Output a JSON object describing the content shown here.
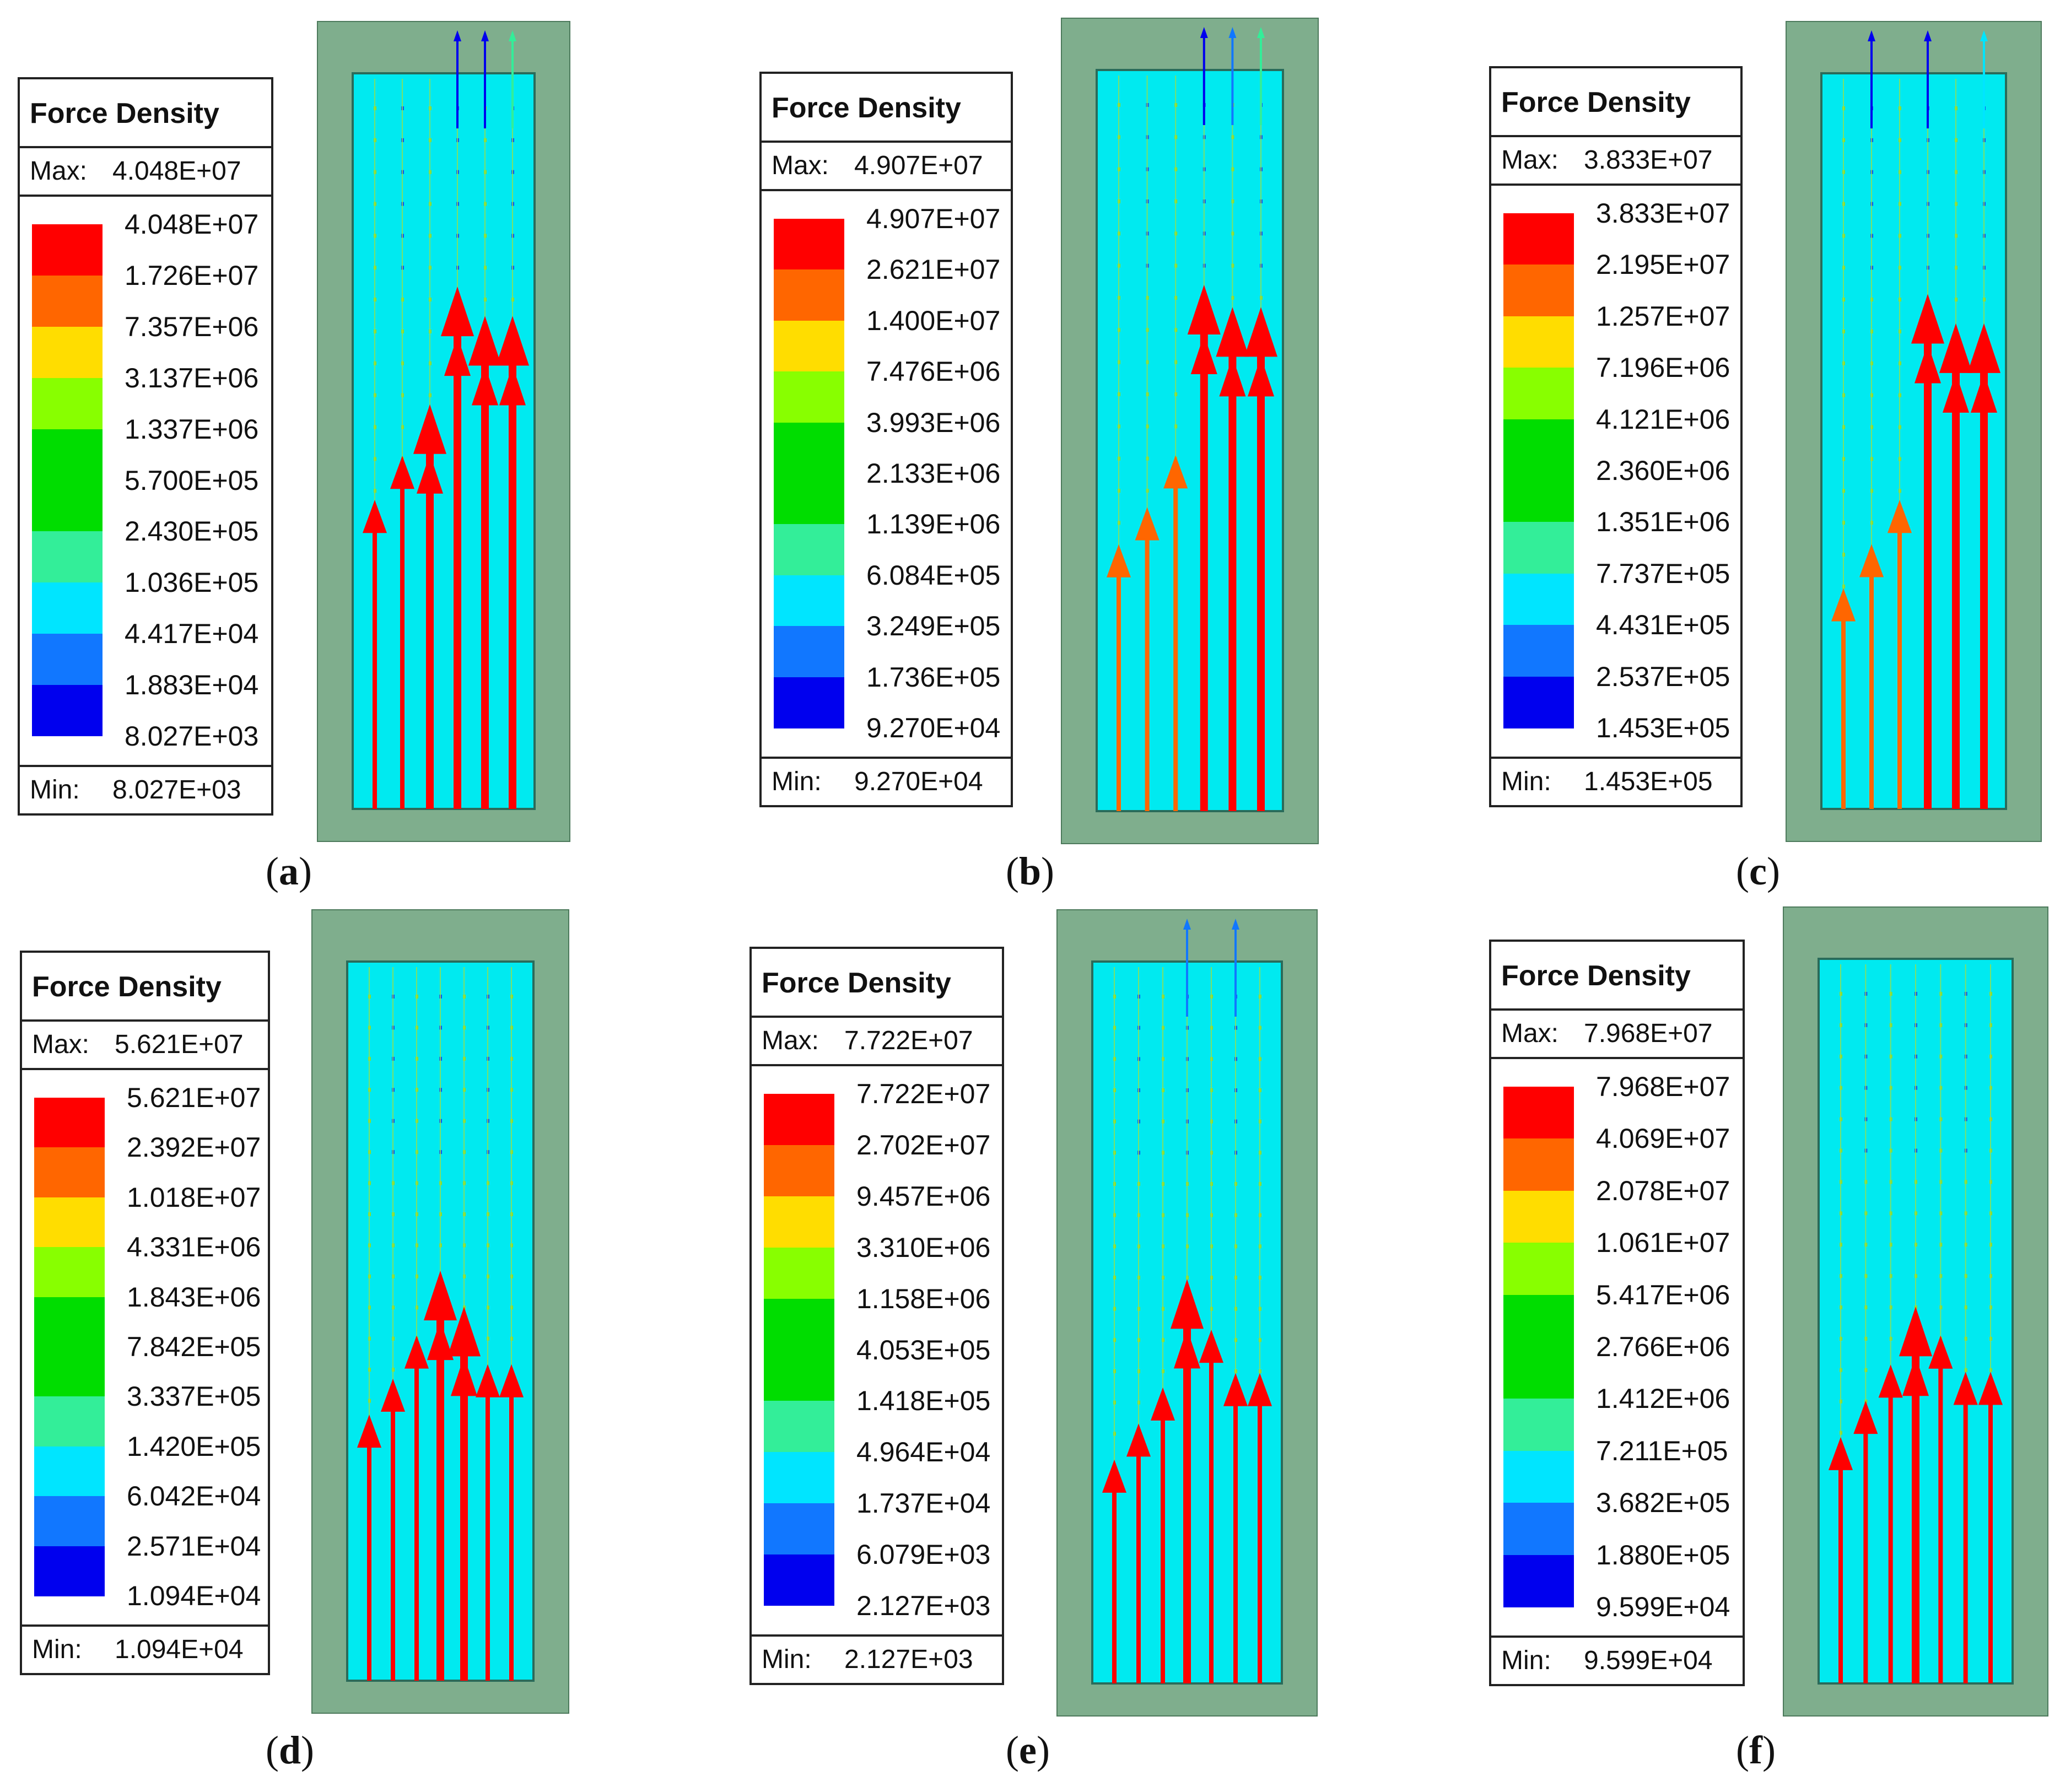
{
  "legend_title": "Force Density",
  "max_label": "Max:",
  "min_label": "Min:",
  "colors": [
    "#ff0000",
    "#ff6600",
    "#ffdd00",
    "#88ff00",
    "#00dd00",
    "#33ee99",
    "#00e5ff",
    "#1177ff",
    "#0000ee"
  ],
  "panels": [
    {
      "caption": "a",
      "max": "4.048E+07",
      "min": "8.027E+03",
      "ticks": [
        "4.048E+07",
        "1.726E+07",
        "7.357E+06",
        "3.137E+06",
        "1.337E+06",
        "5.700E+05",
        "2.430E+05",
        "1.036E+05",
        "4.417E+04",
        "1.883E+04",
        "8.027E+03"
      ]
    },
    {
      "caption": "b",
      "max": "4.907E+07",
      "min": "9.270E+04",
      "ticks": [
        "4.907E+07",
        "2.621E+07",
        "1.400E+07",
        "7.476E+06",
        "3.993E+06",
        "2.133E+06",
        "1.139E+06",
        "6.084E+05",
        "3.249E+05",
        "1.736E+05",
        "9.270E+04"
      ]
    },
    {
      "caption": "c",
      "max": "3.833E+07",
      "min": "1.453E+05",
      "ticks": [
        "3.833E+07",
        "2.195E+07",
        "1.257E+07",
        "7.196E+06",
        "4.121E+06",
        "2.360E+06",
        "1.351E+06",
        "7.737E+05",
        "4.431E+05",
        "2.537E+05",
        "1.453E+05"
      ]
    },
    {
      "caption": "d",
      "max": "5.621E+07",
      "min": "1.094E+04",
      "ticks": [
        "5.621E+07",
        "2.392E+07",
        "1.018E+07",
        "4.331E+06",
        "1.843E+06",
        "7.842E+05",
        "3.337E+05",
        "1.420E+05",
        "6.042E+04",
        "2.571E+04",
        "1.094E+04"
      ]
    },
    {
      "caption": "e",
      "max": "7.722E+07",
      "min": "2.127E+03",
      "ticks": [
        "7.722E+07",
        "2.702E+07",
        "9.457E+06",
        "3.310E+06",
        "1.158E+06",
        "4.053E+05",
        "1.418E+05",
        "4.964E+04",
        "1.737E+04",
        "6.079E+03",
        "2.127E+03"
      ]
    },
    {
      "caption": "f",
      "max": "7.968E+07",
      "min": "9.599E+04",
      "ticks": [
        "7.968E+07",
        "4.069E+07",
        "2.078E+07",
        "1.061E+07",
        "5.417E+06",
        "2.766E+06",
        "1.412E+06",
        "7.211E+05",
        "3.682E+05",
        "1.880E+05",
        "9.599E+04"
      ]
    }
  ],
  "arrow_fields": [
    {
      "big": [
        {
          "c": 0,
          "len": 0.42,
          "col": 0
        },
        {
          "c": 1,
          "len": 0.48,
          "col": 0
        },
        {
          "c": 2,
          "len": 0.55,
          "col": 0
        },
        {
          "c": 3,
          "len": 0.71,
          "col": 0
        },
        {
          "c": 4,
          "len": 0.67,
          "col": 0
        },
        {
          "c": 5,
          "len": 0.67,
          "col": 0
        }
      ],
      "top": [
        {
          "c": 4,
          "col": 8
        },
        {
          "c": 3,
          "col": 8
        },
        {
          "c": 5,
          "col": 5
        }
      ]
    },
    {
      "big": [
        {
          "c": 0,
          "len": 0.36,
          "col": 1
        },
        {
          "c": 1,
          "len": 0.41,
          "col": 1
        },
        {
          "c": 2,
          "len": 0.48,
          "col": 1
        },
        {
          "c": 3,
          "len": 0.71,
          "col": 0
        },
        {
          "c": 4,
          "len": 0.68,
          "col": 0
        },
        {
          "c": 5,
          "len": 0.68,
          "col": 0
        }
      ],
      "top": [
        {
          "c": 3,
          "col": 8
        },
        {
          "c": 4,
          "col": 7
        },
        {
          "c": 5,
          "col": 5
        }
      ]
    },
    {
      "big": [
        {
          "c": 0,
          "len": 0.3,
          "col": 1
        },
        {
          "c": 1,
          "len": 0.36,
          "col": 1
        },
        {
          "c": 2,
          "len": 0.42,
          "col": 1
        },
        {
          "c": 3,
          "len": 0.7,
          "col": 0
        },
        {
          "c": 4,
          "len": 0.66,
          "col": 0
        },
        {
          "c": 5,
          "len": 0.66,
          "col": 0
        }
      ],
      "top": [
        {
          "c": 1,
          "col": 8
        },
        {
          "c": 3,
          "col": 8
        },
        {
          "c": 5,
          "col": 6
        }
      ]
    },
    {
      "big": [
        {
          "c": 0,
          "len": 0.37,
          "col": 0
        },
        {
          "c": 1,
          "len": 0.42,
          "col": 0
        },
        {
          "c": 2,
          "len": 0.48,
          "col": 0
        },
        {
          "c": 3,
          "len": 0.57,
          "col": 0
        },
        {
          "c": 4,
          "len": 0.52,
          "col": 0
        },
        {
          "c": 5,
          "len": 0.44,
          "col": 0
        },
        {
          "c": 6,
          "len": 0.44,
          "col": 0
        }
      ],
      "top": []
    },
    {
      "big": [
        {
          "c": 0,
          "len": 0.31,
          "col": 0
        },
        {
          "c": 1,
          "len": 0.36,
          "col": 0
        },
        {
          "c": 2,
          "len": 0.41,
          "col": 0
        },
        {
          "c": 3,
          "len": 0.56,
          "col": 0
        },
        {
          "c": 4,
          "len": 0.49,
          "col": 0
        },
        {
          "c": 5,
          "len": 0.43,
          "col": 0
        },
        {
          "c": 6,
          "len": 0.43,
          "col": 0
        }
      ],
      "top": [
        {
          "c": 3,
          "col": 7
        },
        {
          "c": 5,
          "col": 7
        }
      ]
    },
    {
      "big": [
        {
          "c": 0,
          "len": 0.34,
          "col": 0
        },
        {
          "c": 1,
          "len": 0.39,
          "col": 0
        },
        {
          "c": 2,
          "len": 0.44,
          "col": 0
        },
        {
          "c": 3,
          "len": 0.52,
          "col": 0
        },
        {
          "c": 4,
          "len": 0.48,
          "col": 0
        },
        {
          "c": 5,
          "len": 0.43,
          "col": 0
        },
        {
          "c": 6,
          "len": 0.43,
          "col": 0
        }
      ],
      "top": []
    }
  ]
}
